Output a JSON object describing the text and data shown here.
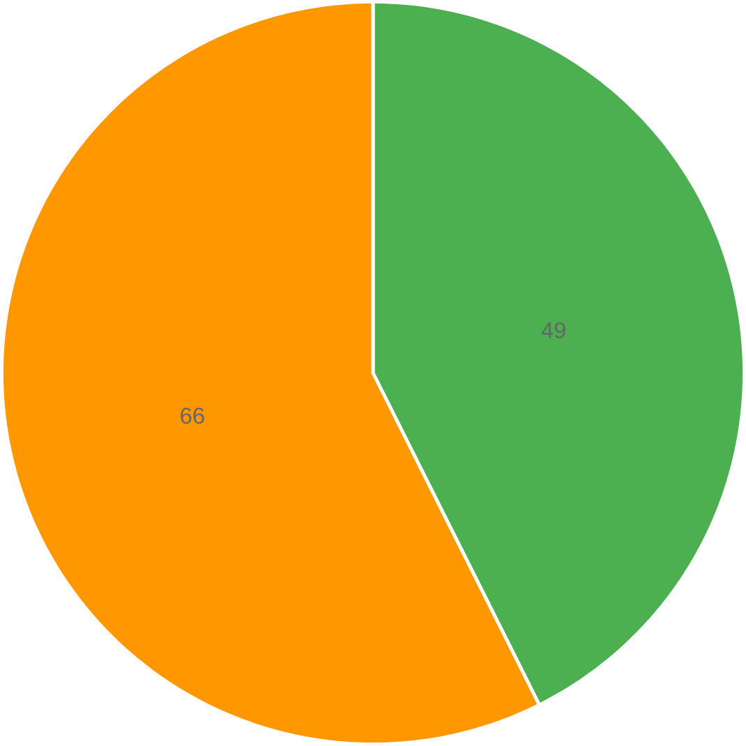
{
  "chart_data": {
    "type": "pie",
    "categories": [
      null,
      null
    ],
    "values": [
      49,
      66
    ],
    "colors": [
      "#4caf50",
      "#ff9800"
    ],
    "data_labels": true
  }
}
